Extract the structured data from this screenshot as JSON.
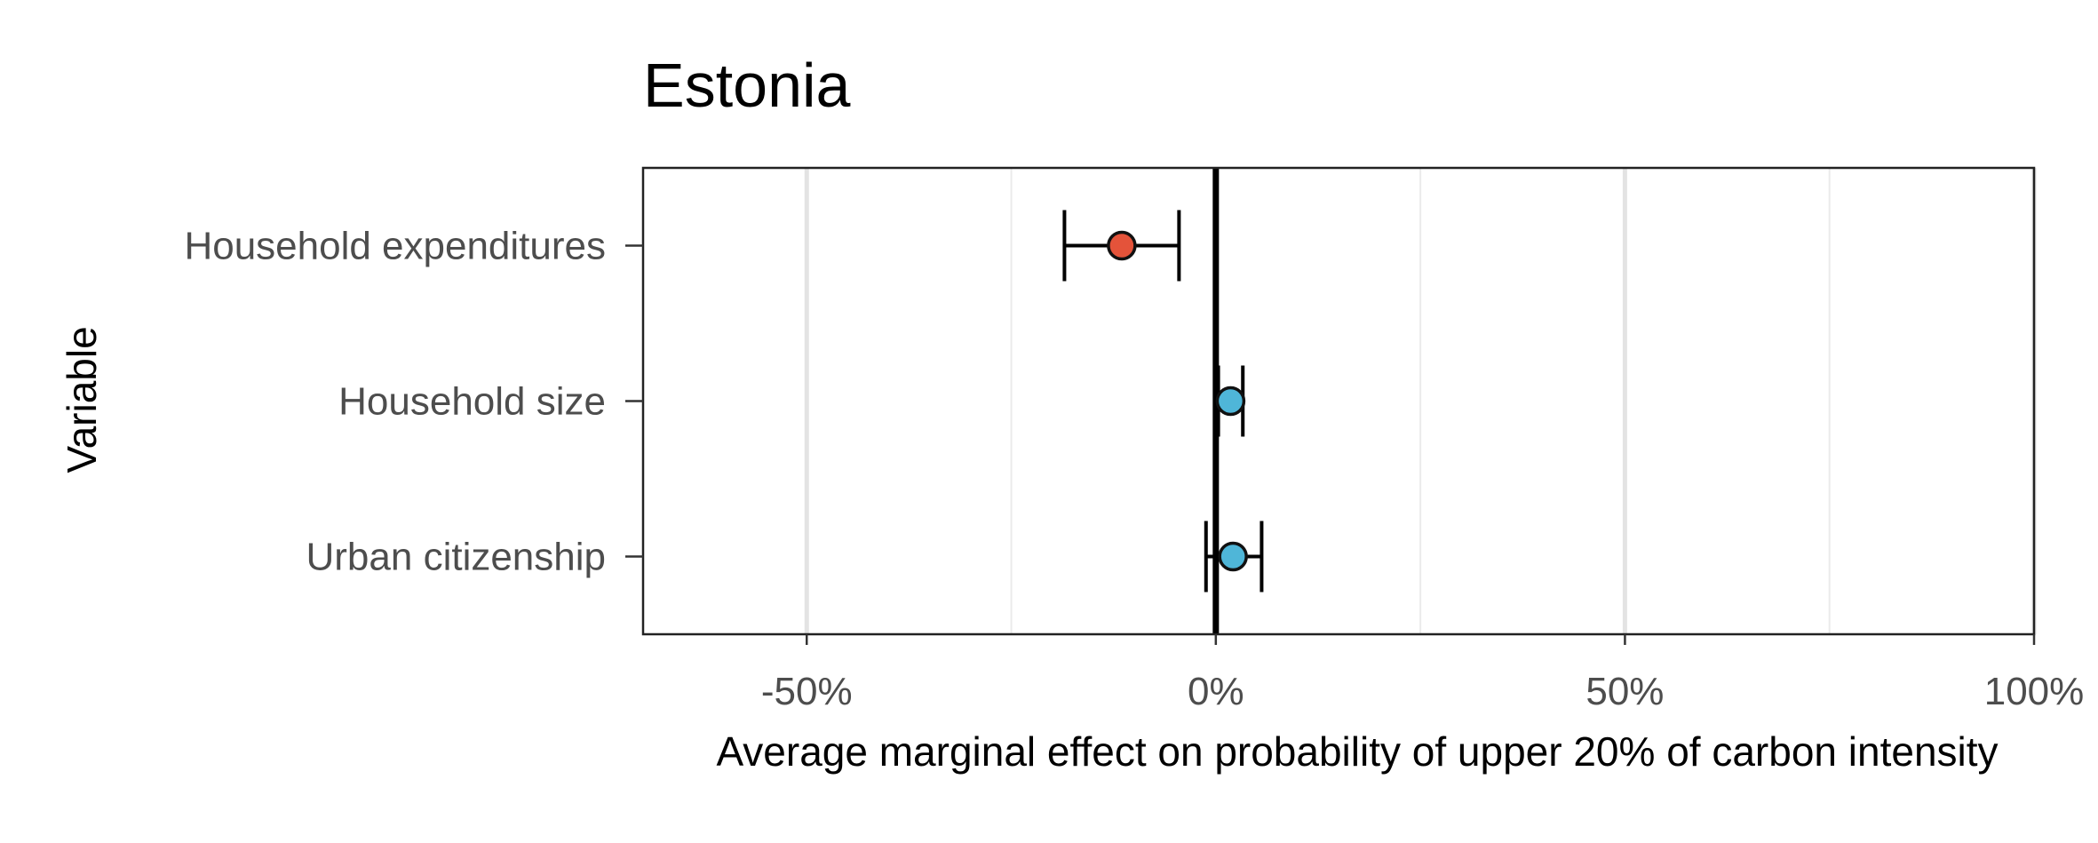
{
  "chart_data": {
    "type": "scatter",
    "title": "Estonia",
    "xlabel": "Average marginal effect on probability of upper 20% of carbon intensity",
    "ylabel": "Variable",
    "xlim": [
      -70,
      100
    ],
    "x_ticks": [
      -50,
      0,
      50,
      100
    ],
    "x_tick_labels": [
      "-50%",
      "0%",
      "50%",
      "100%"
    ],
    "minor_gridlines": [
      -25,
      25,
      75
    ],
    "reference_line": 0,
    "grid": true,
    "legend": "none",
    "categories": [
      "Household expenditures",
      "Household size",
      "Urban citizenship"
    ],
    "points": [
      {
        "variable": "Household expenditures",
        "estimate": -11.5,
        "ci_low": -18.5,
        "ci_high": -4.5,
        "color": "#e4533a"
      },
      {
        "variable": "Household size",
        "estimate": 1.8,
        "ci_low": 0.3,
        "ci_high": 3.3,
        "color": "#4fb6d8"
      },
      {
        "variable": "Urban citizenship",
        "estimate": 2.1,
        "ci_low": -1.2,
        "ci_high": 5.6,
        "color": "#4fb6d8"
      }
    ]
  }
}
